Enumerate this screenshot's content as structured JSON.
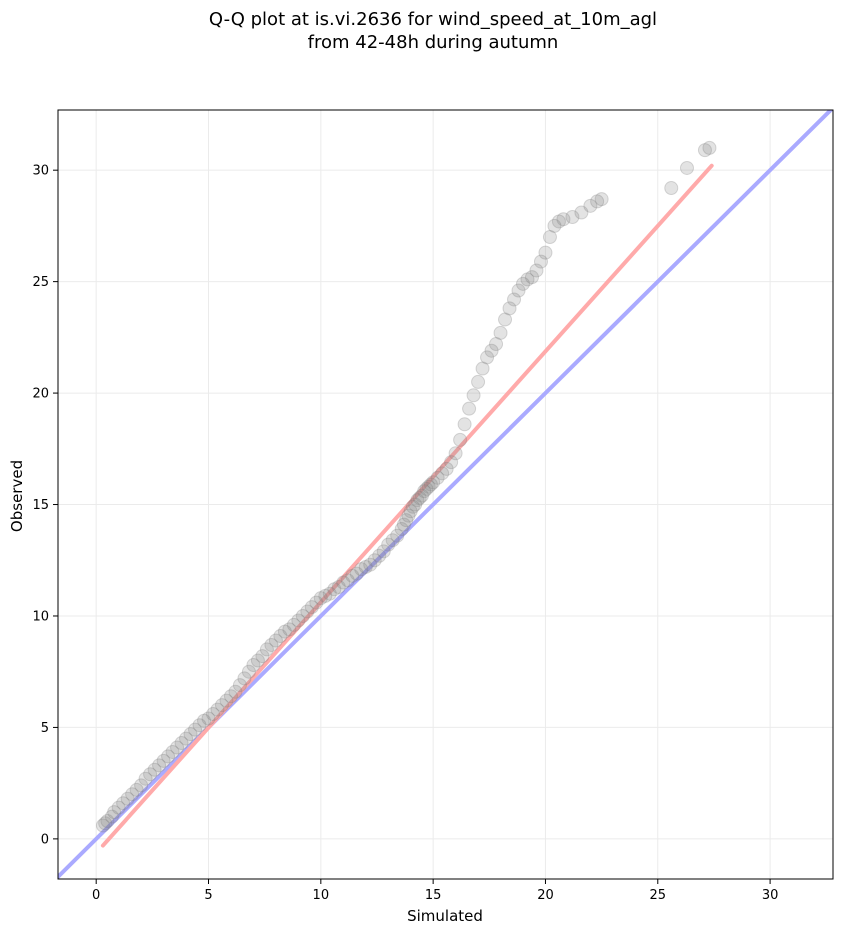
{
  "chart_data": {
    "type": "scatter",
    "title_lines": [
      "Q-Q plot at is.vi.2636 for wind_speed_at_10m_agl",
      "from 42-48h during autumn"
    ],
    "xlabel": "Simulated",
    "ylabel": "Observed",
    "xlim": [
      -1.7,
      32.8
    ],
    "ylim": [
      -1.8,
      32.7
    ],
    "xticks": [
      0,
      5,
      10,
      15,
      20,
      25,
      30
    ],
    "yticks": [
      0,
      5,
      10,
      15,
      20,
      25,
      30
    ],
    "grid": true,
    "lines": [
      {
        "role": "identity",
        "color": "#aaaaff",
        "x": [
          -1.7,
          32.8
        ],
        "y": [
          -1.7,
          32.8
        ]
      },
      {
        "role": "fit",
        "color": "#ffaaaa",
        "x": [
          0.3,
          27.4
        ],
        "y": [
          -0.3,
          30.2
        ]
      }
    ],
    "marker_color": "#808080",
    "points": {
      "x": [
        0.3,
        0.4,
        0.5,
        0.7,
        0.8,
        1.0,
        1.2,
        1.4,
        1.6,
        1.8,
        2.0,
        2.2,
        2.4,
        2.6,
        2.8,
        3.0,
        3.2,
        3.4,
        3.6,
        3.8,
        4.0,
        4.2,
        4.4,
        4.6,
        4.8,
        5.0,
        5.2,
        5.4,
        5.6,
        5.8,
        6.0,
        6.2,
        6.4,
        6.6,
        6.8,
        7.0,
        7.2,
        7.4,
        7.6,
        7.8,
        8.0,
        8.2,
        8.4,
        8.6,
        8.8,
        9.0,
        9.2,
        9.4,
        9.6,
        9.8,
        10.0,
        10.2,
        10.4,
        10.6,
        10.8,
        11.0,
        11.2,
        11.4,
        11.6,
        11.8,
        12.0,
        12.2,
        12.4,
        12.6,
        12.8,
        13.0,
        13.2,
        13.4,
        13.6,
        13.7,
        13.8,
        13.9,
        14.0,
        14.1,
        14.2,
        14.3,
        14.4,
        14.5,
        14.6,
        14.7,
        14.8,
        14.9,
        15.0,
        15.2,
        15.4,
        15.6,
        15.8,
        16.0,
        16.2,
        16.4,
        16.6,
        16.8,
        17.0,
        17.2,
        17.4,
        17.6,
        17.8,
        18.0,
        18.2,
        18.4,
        18.6,
        18.8,
        19.0,
        19.2,
        19.4,
        19.6,
        19.8,
        20.0,
        20.2,
        20.4,
        20.6,
        20.8,
        21.2,
        21.6,
        22.0,
        22.3,
        22.5,
        25.6,
        26.3,
        27.1,
        27.3
      ],
      "y": [
        0.6,
        0.7,
        0.8,
        1.0,
        1.2,
        1.4,
        1.6,
        1.8,
        2.0,
        2.2,
        2.4,
        2.7,
        2.9,
        3.1,
        3.3,
        3.5,
        3.7,
        3.9,
        4.1,
        4.3,
        4.5,
        4.7,
        4.9,
        5.1,
        5.3,
        5.4,
        5.6,
        5.8,
        6.0,
        6.2,
        6.4,
        6.6,
        6.9,
        7.2,
        7.5,
        7.8,
        8.0,
        8.2,
        8.5,
        8.7,
        8.9,
        9.1,
        9.3,
        9.4,
        9.6,
        9.8,
        10.0,
        10.2,
        10.4,
        10.6,
        10.8,
        10.9,
        11.0,
        11.2,
        11.3,
        11.5,
        11.6,
        11.8,
        11.9,
        12.1,
        12.2,
        12.3,
        12.5,
        12.7,
        12.9,
        13.2,
        13.4,
        13.6,
        13.9,
        14.1,
        14.3,
        14.5,
        14.7,
        14.9,
        15.0,
        15.2,
        15.3,
        15.4,
        15.6,
        15.7,
        15.8,
        15.9,
        16.0,
        16.2,
        16.4,
        16.6,
        16.9,
        17.3,
        17.9,
        18.6,
        19.3,
        19.9,
        20.5,
        21.1,
        21.6,
        21.9,
        22.2,
        22.7,
        23.3,
        23.8,
        24.2,
        24.6,
        24.9,
        25.1,
        25.2,
        25.5,
        25.9,
        26.3,
        27.0,
        27.5,
        27.7,
        27.8,
        27.9,
        28.1,
        28.4,
        28.6,
        28.7,
        29.2,
        30.1,
        30.9,
        31.0
      ]
    }
  }
}
